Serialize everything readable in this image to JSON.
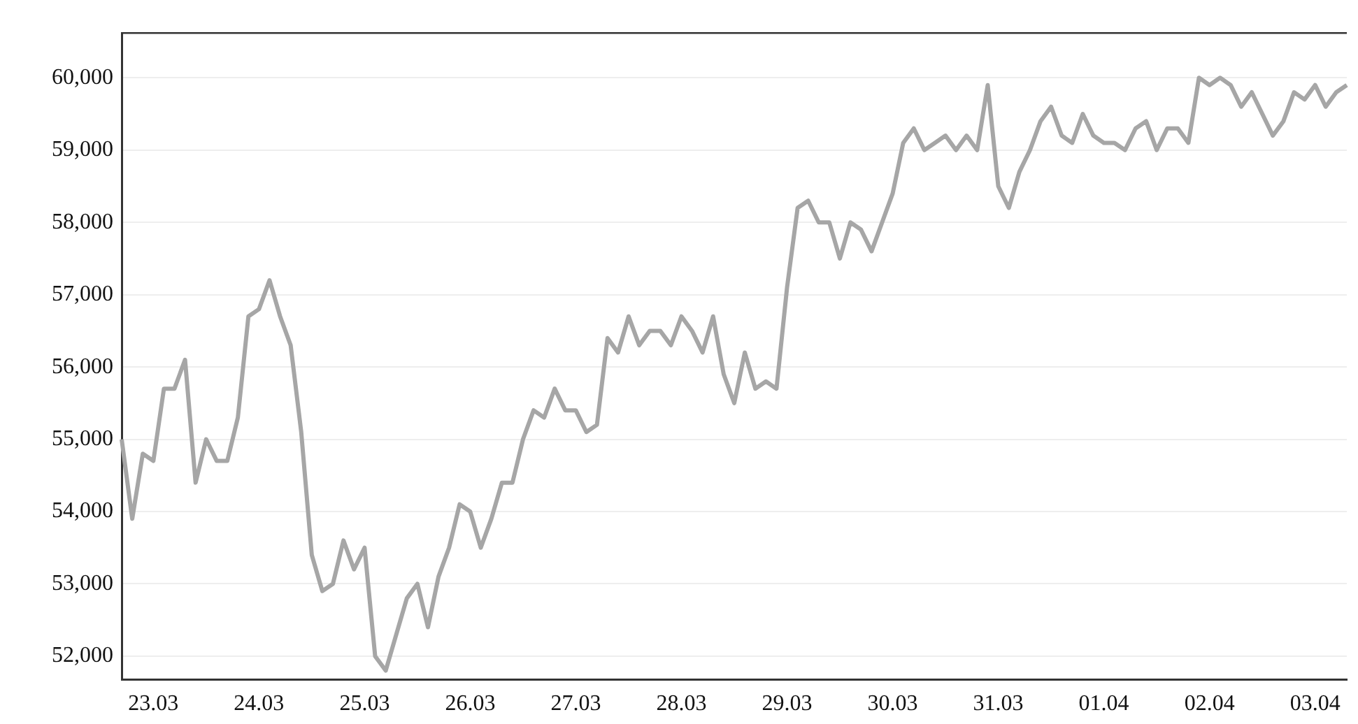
{
  "chart_data": {
    "type": "line",
    "categories": [
      null,
      null,
      null,
      "23.03",
      null,
      null,
      null,
      null,
      null,
      null,
      null,
      null,
      null,
      "24.03",
      null,
      null,
      null,
      null,
      null,
      null,
      null,
      null,
      null,
      "25.03",
      null,
      null,
      null,
      null,
      null,
      null,
      null,
      null,
      null,
      "26.03",
      null,
      null,
      null,
      null,
      null,
      null,
      null,
      null,
      null,
      "27.03",
      null,
      null,
      null,
      null,
      null,
      null,
      null,
      null,
      null,
      "28.03",
      null,
      null,
      null,
      null,
      null,
      null,
      null,
      null,
      null,
      "29.03",
      null,
      null,
      null,
      null,
      null,
      null,
      null,
      null,
      null,
      "30.03",
      null,
      null,
      null,
      null,
      null,
      null,
      null,
      null,
      null,
      "31.03",
      null,
      null,
      null,
      null,
      null,
      null,
      null,
      null,
      null,
      "01.04",
      null,
      null,
      null,
      null,
      null,
      null,
      null,
      null,
      null,
      "02.04",
      null,
      null,
      null,
      null,
      null,
      null,
      null,
      null,
      null,
      "03.04",
      null,
      null,
      null
    ],
    "series": [
      {
        "color": "#a6a6a6",
        "values": [
          55000,
          53900,
          54800,
          54700,
          55700,
          55700,
          56100,
          54400,
          55000,
          54700,
          54700,
          55300,
          56700,
          56800,
          57200,
          56700,
          56300,
          55100,
          53400,
          52900,
          53000,
          53600,
          53200,
          53500,
          52000,
          51800,
          52300,
          52800,
          53000,
          52400,
          53100,
          53500,
          54100,
          54000,
          53500,
          53900,
          54400,
          54400,
          55000,
          55400,
          55300,
          55700,
          55400,
          55400,
          55100,
          55200,
          56400,
          56200,
          56700,
          56300,
          56500,
          56500,
          56300,
          56700,
          56500,
          56200,
          56700,
          55900,
          55500,
          56200,
          55700,
          55800,
          55700,
          57100,
          58200,
          58300,
          58000,
          58000,
          57500,
          58000,
          57900,
          57600,
          58000,
          58400,
          59100,
          59300,
          59000,
          59100,
          59200,
          59000,
          59200,
          59000,
          59900,
          58500,
          58200,
          58700,
          59000,
          59400,
          59600,
          59200,
          59100,
          59500,
          59200,
          59100,
          59100,
          59000,
          59300,
          59400,
          59000,
          59300,
          59300,
          59100,
          60000,
          59900,
          60000,
          59900,
          59600,
          59800,
          59500,
          59200,
          59400,
          59800,
          59700,
          59900,
          59600,
          59800,
          59900
        ]
      }
    ],
    "ylim": [
      51680,
      60620
    ],
    "yticks": [
      {
        "value": 52000,
        "label": "52,000"
      },
      {
        "value": 53000,
        "label": "53,000"
      },
      {
        "value": 54000,
        "label": "54,000"
      },
      {
        "value": 55000,
        "label": "55,000"
      },
      {
        "value": 56000,
        "label": "56,000"
      },
      {
        "value": 57000,
        "label": "57,000"
      },
      {
        "value": 58000,
        "label": "58,000"
      },
      {
        "value": 59000,
        "label": "59,000"
      },
      {
        "value": 60000,
        "label": "60,000"
      }
    ],
    "grid": "y",
    "legend": false,
    "marker": "none",
    "line_style": "solid"
  }
}
